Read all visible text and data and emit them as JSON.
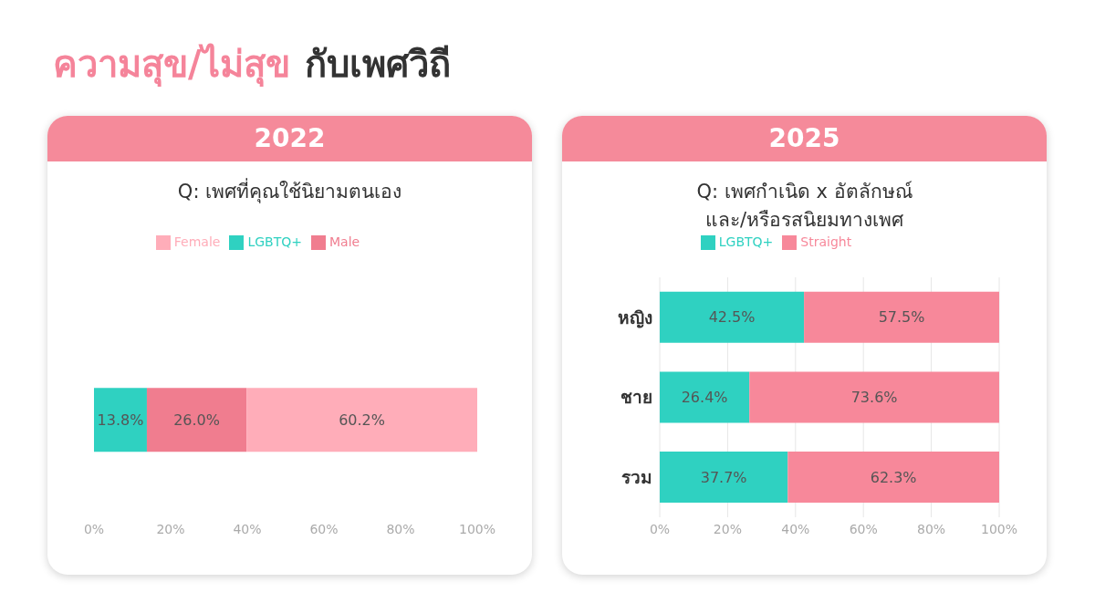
{
  "chart_data": [
    {
      "type": "bar",
      "orientation": "horizontal",
      "stacked": true,
      "title": "2022",
      "subtitle": "Q: เพศที่คุณใช้นิยามตนเอง",
      "annotations": [
        "ความสุข/ไม่สุข",
        "กับเพศวิถี"
      ],
      "categories": [
        null
      ],
      "series": [
        {
          "name": "LGBTQ+",
          "color": "#2fd1c1",
          "values": [
            13.8
          ],
          "value_labels": [
            "13.8%"
          ]
        },
        {
          "name": "Male",
          "color": "#f07d8f",
          "values": [
            26.0
          ],
          "value_labels": [
            "26.0%"
          ]
        },
        {
          "name": "Female",
          "color": "#ffadb9",
          "values": [
            60.2
          ],
          "value_labels": [
            "60.2%"
          ]
        }
      ],
      "xlim": [
        0,
        100
      ],
      "xticks": [
        {
          "value": 0,
          "label": "0%"
        },
        {
          "value": 20,
          "label": "20%"
        },
        {
          "value": 40,
          "label": "40%"
        },
        {
          "value": 60,
          "label": "60%"
        },
        {
          "value": 80,
          "label": "80%"
        },
        {
          "value": 100,
          "label": "100%"
        }
      ],
      "grid": false,
      "legend": "top"
    },
    {
      "type": "bar",
      "orientation": "horizontal",
      "stacked": true,
      "title": "2025",
      "subtitle": "Q: เพศกำเนิด x อัตลักษณ์\nและ/หรือรสนิยมทางเพศ",
      "categories": [
        "หญิง",
        "ชาย",
        "รวม"
      ],
      "series": [
        {
          "name": "LGBTQ+",
          "color": "#2fd1c1",
          "values": [
            42.5,
            26.4,
            37.7
          ],
          "value_labels": [
            "42.5%",
            "26.4%",
            "37.7%"
          ]
        },
        {
          "name": "Straight",
          "color": "#f7889a",
          "values": [
            57.5,
            73.6,
            62.3
          ],
          "value_labels": [
            "57.5%",
            "73.6%",
            "62.3%"
          ]
        }
      ],
      "xlim": [
        0,
        100
      ],
      "xticks": [
        {
          "value": 0,
          "label": "0%"
        },
        {
          "value": 20,
          "label": "20%"
        },
        {
          "value": 40,
          "label": "40%"
        },
        {
          "value": 60,
          "label": "60%"
        },
        {
          "value": 80,
          "label": "80%"
        },
        {
          "value": 100,
          "label": "100%"
        }
      ],
      "grid": "x",
      "legend": "top"
    }
  ]
}
